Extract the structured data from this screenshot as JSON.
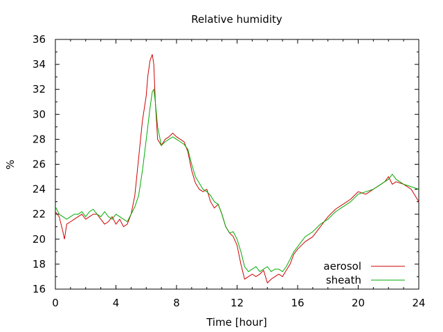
{
  "chart_data": {
    "type": "line",
    "title": "Relative humidity",
    "xlabel": "Time [hour]",
    "ylabel": "%",
    "xlim": [
      0,
      24
    ],
    "ylim": [
      16,
      36
    ],
    "xticks": [
      0,
      4,
      8,
      12,
      16,
      20,
      24
    ],
    "yticks": [
      16,
      18,
      20,
      22,
      24,
      26,
      28,
      30,
      32,
      34,
      36
    ],
    "grid": false,
    "legend_position": "bottom-right",
    "series": [
      {
        "name": "aerosol",
        "color": "#cc0000",
        "x": [
          0,
          0.25,
          0.5,
          0.6,
          0.75,
          1,
          1.25,
          1.5,
          1.75,
          2,
          2.25,
          2.5,
          2.75,
          3,
          3.25,
          3.5,
          3.75,
          4,
          4.25,
          4.5,
          4.75,
          5,
          5.25,
          5.5,
          5.75,
          6,
          6.1,
          6.25,
          6.4,
          6.5,
          6.6,
          6.75,
          7,
          7.25,
          7.5,
          7.75,
          8,
          8.25,
          8.5,
          8.75,
          9,
          9.25,
          9.5,
          9.75,
          10,
          10.25,
          10.5,
          10.75,
          11,
          11.25,
          11.5,
          11.75,
          12,
          12.25,
          12.5,
          12.75,
          13,
          13.25,
          13.5,
          13.75,
          14,
          14.25,
          14.5,
          14.75,
          15,
          15.25,
          15.5,
          15.75,
          16,
          16.5,
          17,
          17.5,
          18,
          18.5,
          19,
          19.5,
          20,
          20.5,
          21,
          21.5,
          21.75,
          22,
          22.25,
          22.5,
          23,
          23.5,
          24
        ],
        "values": [
          22.2,
          21.8,
          20.6,
          20.0,
          21.2,
          21.4,
          21.6,
          21.8,
          22.0,
          21.6,
          21.8,
          22.0,
          22.0,
          21.6,
          21.2,
          21.4,
          21.8,
          21.2,
          21.6,
          21.0,
          21.2,
          22.0,
          23.5,
          26.5,
          29.5,
          31.5,
          33.0,
          34.3,
          34.8,
          34.0,
          31.0,
          28.0,
          27.5,
          28.0,
          28.2,
          28.5,
          28.2,
          28.0,
          27.8,
          27.0,
          25.5,
          24.5,
          24.0,
          23.8,
          24.0,
          23.0,
          22.5,
          22.8,
          22.0,
          21.0,
          20.5,
          20.2,
          19.5,
          18.0,
          16.8,
          17.0,
          17.2,
          17.0,
          17.2,
          17.5,
          16.5,
          16.8,
          17.0,
          17.2,
          17.0,
          17.5,
          18.0,
          18.8,
          19.2,
          19.8,
          20.2,
          21.0,
          21.8,
          22.4,
          22.8,
          23.2,
          23.8,
          23.6,
          24.0,
          24.4,
          24.6,
          25.0,
          24.4,
          24.6,
          24.4,
          24.0,
          23.0
        ]
      },
      {
        "name": "sheath",
        "color": "#00aa00",
        "x": [
          0,
          0.25,
          0.5,
          0.75,
          1,
          1.25,
          1.5,
          1.75,
          2,
          2.25,
          2.5,
          2.75,
          3,
          3.25,
          3.5,
          3.75,
          4,
          4.25,
          4.5,
          4.75,
          5,
          5.25,
          5.5,
          5.75,
          6,
          6.25,
          6.4,
          6.5,
          6.6,
          6.75,
          7,
          7.25,
          7.5,
          7.75,
          8,
          8.25,
          8.5,
          8.75,
          9,
          9.25,
          9.5,
          9.75,
          10,
          10.25,
          10.5,
          10.75,
          11,
          11.25,
          11.5,
          11.75,
          12,
          12.25,
          12.5,
          12.75,
          13,
          13.25,
          13.5,
          13.75,
          14,
          14.25,
          14.5,
          14.75,
          15,
          15.25,
          15.5,
          15.75,
          16,
          16.5,
          17,
          17.5,
          18,
          18.5,
          19,
          19.5,
          20,
          20.5,
          21,
          21.5,
          21.75,
          22,
          22.25,
          22.5,
          23,
          23.5,
          24
        ],
        "values": [
          22.6,
          22.0,
          21.8,
          21.6,
          21.8,
          22.0,
          22.0,
          22.2,
          21.8,
          22.2,
          22.4,
          22.0,
          21.8,
          22.2,
          21.8,
          21.6,
          22.0,
          21.8,
          21.6,
          21.4,
          22.0,
          22.6,
          23.5,
          25.5,
          28.0,
          30.5,
          31.8,
          32.0,
          31.0,
          29.0,
          27.5,
          27.8,
          28.0,
          28.2,
          28.0,
          27.8,
          27.6,
          27.2,
          26.0,
          25.0,
          24.5,
          24.0,
          23.8,
          23.5,
          23.0,
          22.8,
          22.0,
          21.0,
          20.5,
          20.6,
          20.0,
          19.0,
          17.8,
          17.4,
          17.6,
          17.8,
          17.4,
          17.6,
          17.8,
          17.4,
          17.6,
          17.6,
          17.4,
          17.8,
          18.4,
          19.0,
          19.4,
          20.2,
          20.6,
          21.2,
          21.6,
          22.2,
          22.6,
          23.0,
          23.6,
          23.8,
          24.0,
          24.4,
          24.6,
          24.8,
          25.2,
          24.8,
          24.4,
          24.2,
          24.0
        ]
      }
    ]
  }
}
